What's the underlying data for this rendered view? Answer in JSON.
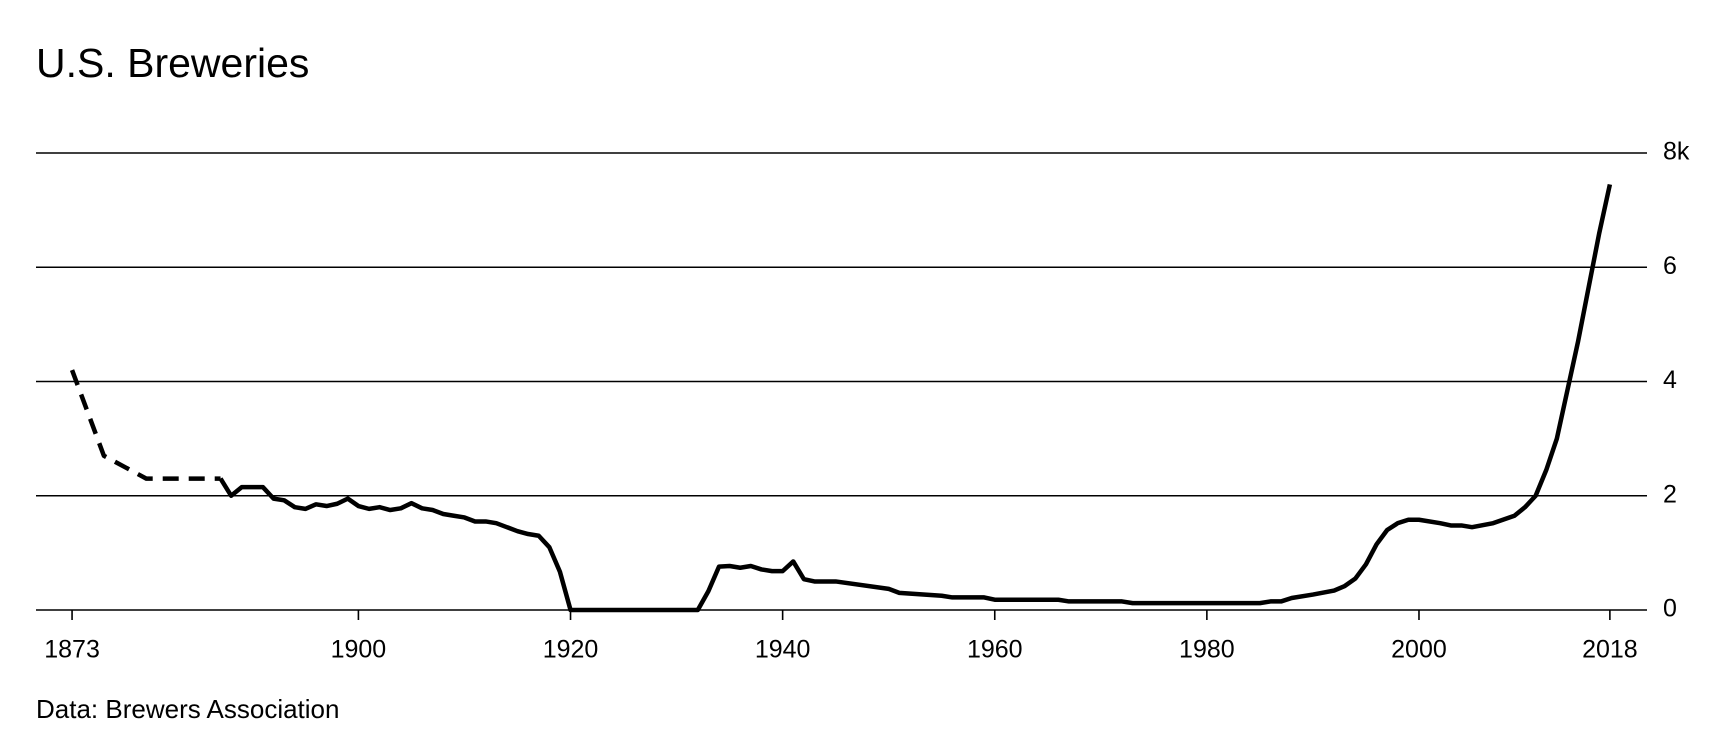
{
  "chart_data": {
    "type": "line",
    "title": "U.S. Breweries",
    "source": "Data: Brewers Association",
    "color": "#000000",
    "series": [
      {
        "style": "dashed",
        "x": [
          1873,
          1876,
          1880,
          1884,
          1887
        ],
        "values": [
          4.2,
          2.7,
          2.3,
          2.3,
          2.3
        ]
      },
      {
        "style": "solid",
        "x": [
          1887,
          1888,
          1889,
          1891,
          1892,
          1893,
          1894,
          1895,
          1896,
          1897,
          1898,
          1899,
          1900,
          1901,
          1902,
          1903,
          1904,
          1905,
          1906,
          1907,
          1908,
          1909,
          1910,
          1911,
          1912,
          1913,
          1914,
          1915,
          1916,
          1917,
          1918,
          1919,
          1920,
          1932,
          1933,
          1934,
          1935,
          1936,
          1937,
          1938,
          1939,
          1940,
          1941,
          1942,
          1943,
          1945,
          1950,
          1951,
          1955,
          1956,
          1959,
          1960,
          1966,
          1967,
          1972,
          1973,
          1985,
          1986,
          1987,
          1988,
          1990,
          1992,
          1993,
          1994,
          1995,
          1996,
          1997,
          1998,
          1999,
          2000,
          2002,
          2003,
          2004,
          2005,
          2007,
          2009,
          2010,
          2011,
          2012,
          2013,
          2014,
          2015,
          2016,
          2017,
          2018
        ],
        "values": [
          2.3,
          2.0,
          2.15,
          2.15,
          1.95,
          1.92,
          1.8,
          1.77,
          1.85,
          1.82,
          1.86,
          1.95,
          1.82,
          1.77,
          1.8,
          1.75,
          1.78,
          1.87,
          1.78,
          1.75,
          1.68,
          1.65,
          1.62,
          1.55,
          1.55,
          1.52,
          1.45,
          1.38,
          1.33,
          1.3,
          1.1,
          0.67,
          0,
          0,
          0.33,
          0.76,
          0.77,
          0.74,
          0.77,
          0.71,
          0.68,
          0.68,
          0.85,
          0.54,
          0.5,
          0.5,
          0.37,
          0.3,
          0.25,
          0.22,
          0.22,
          0.18,
          0.18,
          0.15,
          0.15,
          0.12,
          0.12,
          0.15,
          0.15,
          0.21,
          0.27,
          0.34,
          0.42,
          0.55,
          0.8,
          1.15,
          1.4,
          1.52,
          1.58,
          1.58,
          1.52,
          1.48,
          1.48,
          1.45,
          1.52,
          1.65,
          1.8,
          2.0,
          2.45,
          3.0,
          3.85,
          4.7,
          5.65,
          6.6,
          7.45
        ]
      }
    ],
    "xlim": [
      1869.6,
      2021.5
    ],
    "xticks": [
      1873,
      1900,
      1920,
      1940,
      1960,
      1980,
      2000,
      2018
    ],
    "ylim": [
      0,
      8
    ],
    "yticks": [
      0,
      2,
      4,
      6,
      {
        "value": 8,
        "label": "8k"
      }
    ],
    "grid": true
  }
}
